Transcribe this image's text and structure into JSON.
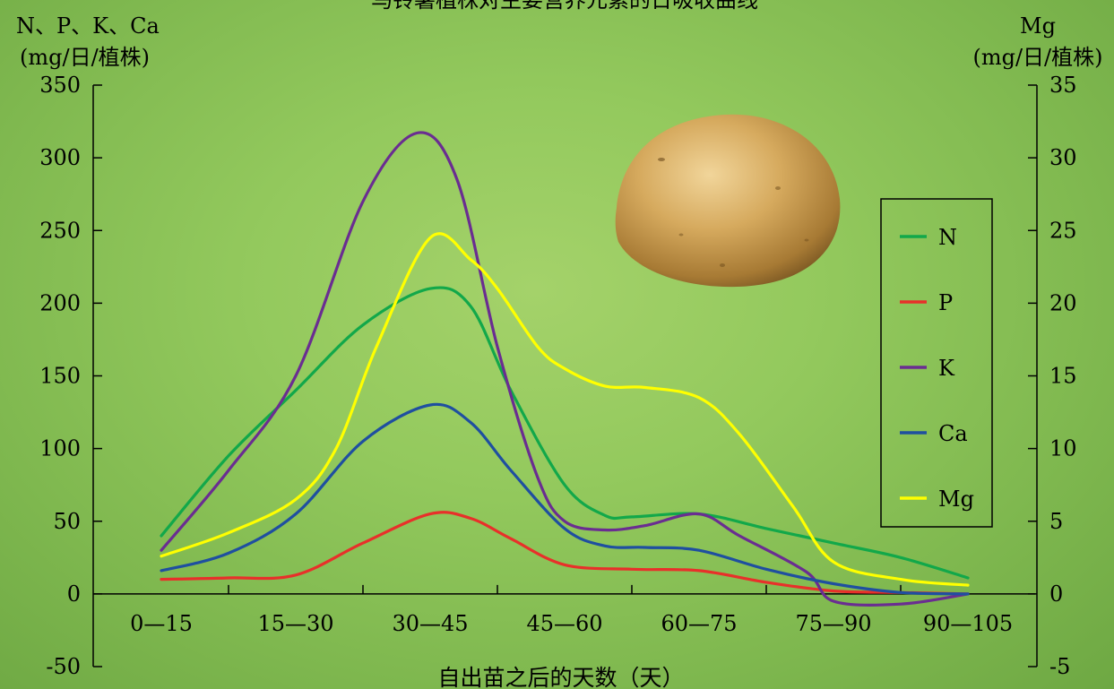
{
  "chart_data": {
    "type": "line",
    "title": "马铃薯植株对主要营养元素的日吸收曲线",
    "xlabel": "自出苗之后的天数（天）",
    "ylabel_left": [
      "N、P、K、Ca",
      "(mg/日/植株)"
    ],
    "ylabel_right": [
      "Mg",
      "(mg/日/植株)"
    ],
    "categories": [
      "0—15",
      "15—30",
      "30—45",
      "45—60",
      "60—75",
      "75—90",
      "90—105"
    ],
    "ylim_left": [
      -50,
      350
    ],
    "ylim_right": [
      -5,
      35
    ],
    "yticks_left": [
      "350",
      "300",
      "250",
      "200",
      "150",
      "100",
      "50",
      "0",
      "-50"
    ],
    "yticks_right": [
      "35",
      "30",
      "25",
      "20",
      "15",
      "10",
      "5",
      "0",
      "-5"
    ],
    "grid": false,
    "legend_position": "right",
    "series": [
      {
        "name": "N",
        "axis": "left",
        "color": "#12a84a",
        "points": [
          [
            0,
            40
          ],
          [
            0.5,
            95
          ],
          [
            1,
            140
          ],
          [
            1.5,
            185
          ],
          [
            2,
            210
          ],
          [
            2.3,
            198
          ],
          [
            2.6,
            140
          ],
          [
            3,
            75
          ],
          [
            3.3,
            54
          ],
          [
            3.5,
            53
          ],
          [
            4,
            55
          ],
          [
            4.5,
            45
          ],
          [
            5,
            35
          ],
          [
            5.5,
            25
          ],
          [
            6,
            11
          ]
        ]
      },
      {
        "name": "P",
        "axis": "left",
        "color": "#e8302a",
        "points": [
          [
            0,
            10
          ],
          [
            0.5,
            11
          ],
          [
            1,
            13
          ],
          [
            1.5,
            35
          ],
          [
            2,
            55
          ],
          [
            2.3,
            52
          ],
          [
            2.6,
            38
          ],
          [
            3,
            20
          ],
          [
            3.5,
            17
          ],
          [
            4,
            16
          ],
          [
            4.5,
            8
          ],
          [
            5,
            2
          ],
          [
            5.5,
            1
          ],
          [
            6,
            0
          ]
        ]
      },
      {
        "name": "K",
        "axis": "left",
        "color": "#6a2d91",
        "points": [
          [
            0,
            30
          ],
          [
            0.5,
            85
          ],
          [
            1,
            150
          ],
          [
            1.5,
            270
          ],
          [
            1.9,
            317
          ],
          [
            2.2,
            285
          ],
          [
            2.5,
            170
          ],
          [
            2.8,
            80
          ],
          [
            3,
            50
          ],
          [
            3.3,
            44
          ],
          [
            3.6,
            47
          ],
          [
            4,
            55
          ],
          [
            4.3,
            40
          ],
          [
            4.8,
            15
          ],
          [
            5,
            -5
          ],
          [
            5.5,
            -7
          ],
          [
            6,
            0
          ]
        ]
      },
      {
        "name": "Ca",
        "axis": "left",
        "color": "#1f4fa0",
        "points": [
          [
            0,
            16
          ],
          [
            0.5,
            28
          ],
          [
            1,
            55
          ],
          [
            1.5,
            105
          ],
          [
            2,
            130
          ],
          [
            2.3,
            118
          ],
          [
            2.6,
            85
          ],
          [
            3,
            45
          ],
          [
            3.3,
            33
          ],
          [
            3.6,
            32
          ],
          [
            4,
            30
          ],
          [
            4.5,
            17
          ],
          [
            5,
            7
          ],
          [
            5.5,
            1
          ],
          [
            6,
            0
          ]
        ]
      },
      {
        "name": "Mg",
        "axis": "right",
        "color": "#ffff00",
        "points": [
          [
            0,
            2.6
          ],
          [
            0.5,
            4.2
          ],
          [
            1,
            6.5
          ],
          [
            1.3,
            10
          ],
          [
            1.6,
            17
          ],
          [
            2,
            24.5
          ],
          [
            2.3,
            23
          ],
          [
            2.5,
            21
          ],
          [
            2.8,
            17
          ],
          [
            3,
            15.5
          ],
          [
            3.3,
            14.3
          ],
          [
            3.6,
            14.2
          ],
          [
            4,
            13.5
          ],
          [
            4.3,
            11
          ],
          [
            4.7,
            6
          ],
          [
            5,
            2.2
          ],
          [
            5.5,
            1
          ],
          [
            6,
            0.6
          ]
        ]
      }
    ],
    "legend": [
      "N",
      "P",
      "K",
      "Ca",
      "Mg"
    ]
  },
  "illustration": {
    "name": "potato"
  }
}
